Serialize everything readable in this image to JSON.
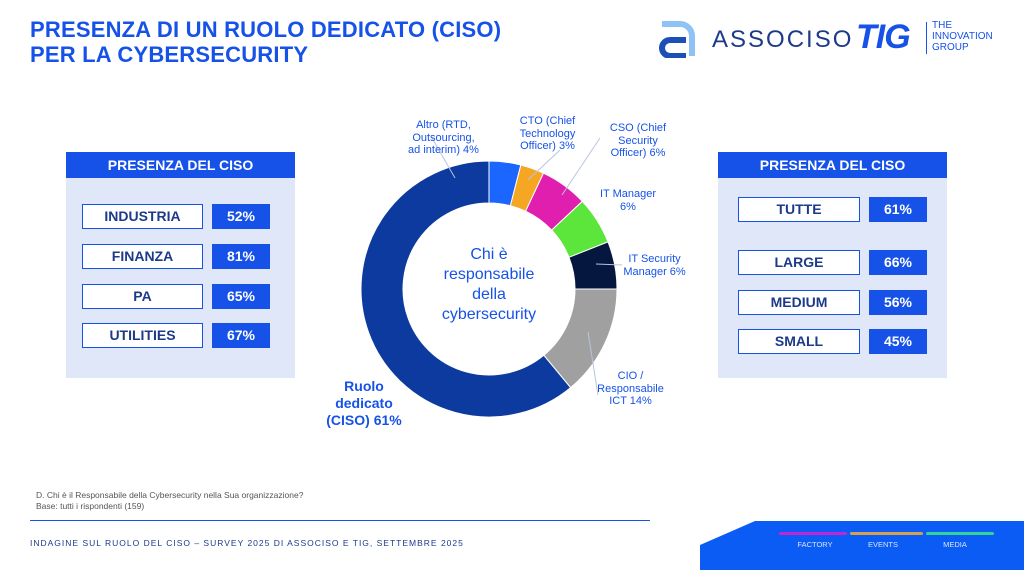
{
  "title": [
    "PRESENZA DI UN RUOLO DEDICATO (CISO)",
    "PER LA  CYBERSECURITY"
  ],
  "logos": {
    "associso": "ASSOCISO",
    "tig": "TIG",
    "tig_sub": [
      "THE",
      "INNOVATION",
      "GROUP"
    ]
  },
  "left_panel": {
    "header": "PRESENZA DEL CISO",
    "rows": [
      {
        "label": "INDUSTRIA",
        "value": "52%"
      },
      {
        "label": "FINANZA",
        "value": "81%"
      },
      {
        "label": "PA",
        "value": "65%"
      },
      {
        "label": "UTILITIES",
        "value": "67%"
      }
    ]
  },
  "right_panel": {
    "header": "PRESENZA DEL CISO",
    "rows": [
      {
        "label": "TUTTE",
        "value": "61%"
      },
      {
        "label": "LARGE",
        "value": "66%"
      },
      {
        "label": "MEDIUM",
        "value": "56%"
      },
      {
        "label": "SMALL",
        "value": "45%"
      }
    ]
  },
  "chart_data": {
    "type": "pie",
    "donut": true,
    "center_text": [
      "Chi è",
      "responsabile",
      "della",
      "cybersecurity"
    ],
    "slices": [
      {
        "label": [
          "Altro (RTD,",
          "Outsourcing,",
          "ad interim) 4%"
        ],
        "value": 4,
        "color": "#1a66ff"
      },
      {
        "label": [
          "CTO (Chief",
          "Technology",
          "Officer) 3%"
        ],
        "value": 3,
        "color": "#f5a623"
      },
      {
        "label": [
          "CSO (Chief",
          "Security",
          "Officer) 6%"
        ],
        "value": 6,
        "color": "#e01fae"
      },
      {
        "label": [
          "IT Manager",
          "6%"
        ],
        "value": 6,
        "color": "#5ce53a"
      },
      {
        "label": [
          "IT Security",
          "Manager 6%"
        ],
        "value": 6,
        "color": "#05163f"
      },
      {
        "label": [
          "CIO /",
          "Responsabile",
          "ICT 14%"
        ],
        "value": 14,
        "color": "#a0a0a0"
      },
      {
        "label": [
          "Ruolo",
          "dedicato",
          "(CISO) 61%"
        ],
        "value": 61,
        "color": "#0d3a9e"
      }
    ]
  },
  "footnote": [
    "D. Chi è il Responsabile della Cybersecurity nella Sua organizzazione?",
    "Base: tutti i rispondenti (159)"
  ],
  "survey": "INDAGINE SUL RUOLO DEL CISO – SURVEY 2025 DI ASSOCISO E TIG, SETTEMBRE 2025",
  "brands": [
    {
      "name": "FACTORY",
      "color": "#c026d3"
    },
    {
      "name": "EVENTS",
      "color": "#d4a054"
    },
    {
      "name": "MEDIA",
      "color": "#34d399"
    }
  ]
}
